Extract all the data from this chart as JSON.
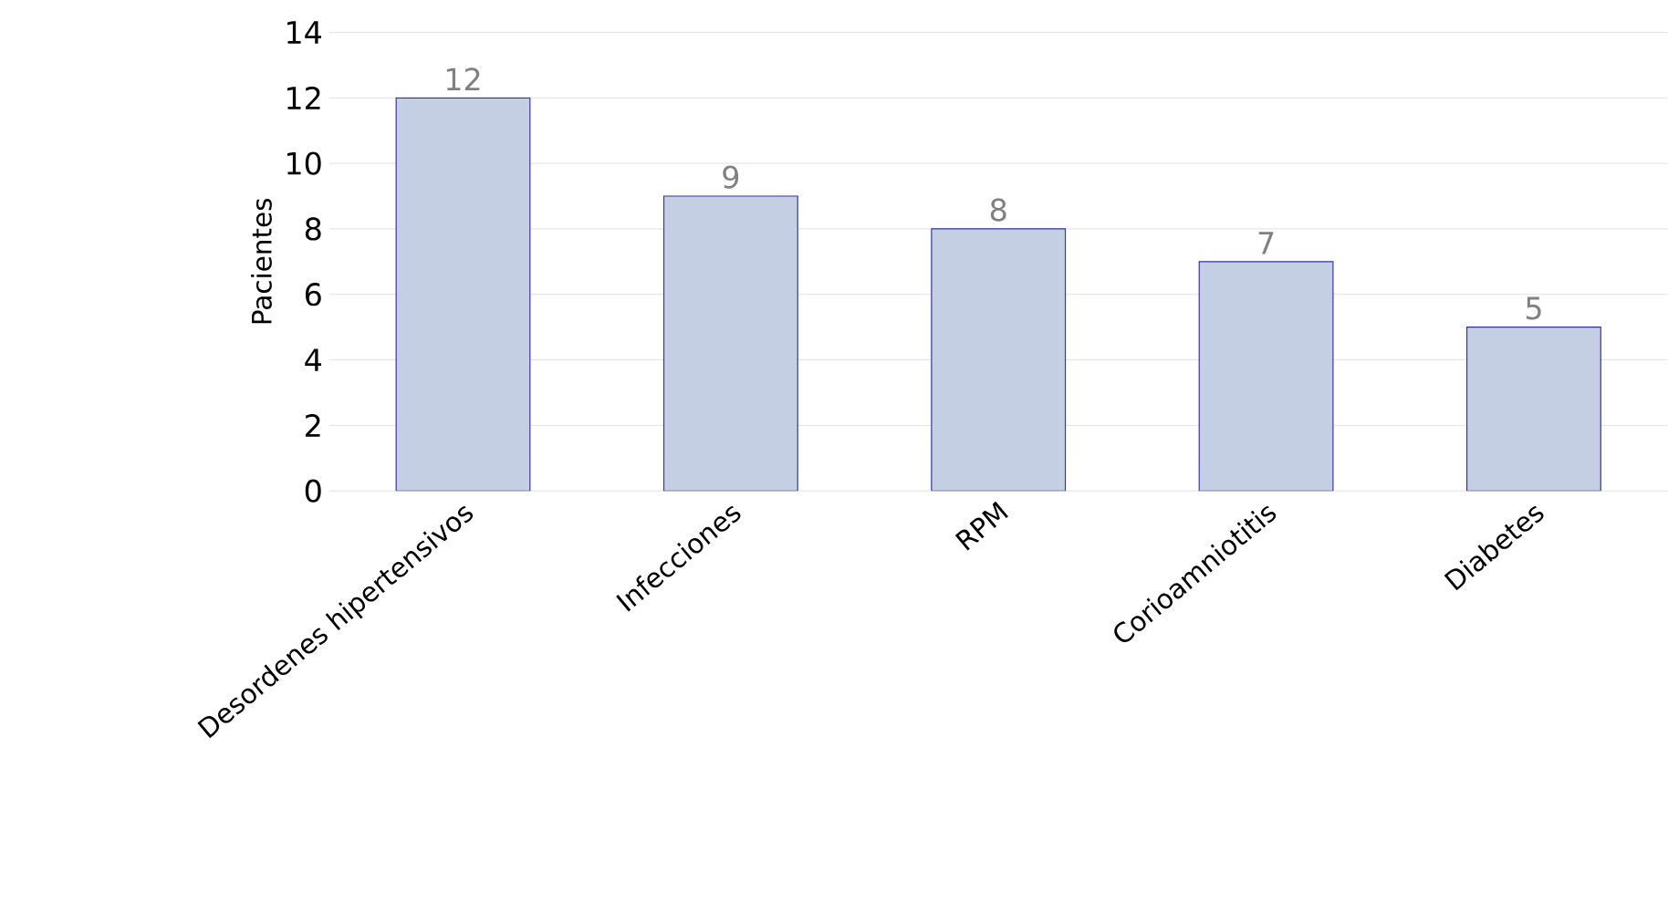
{
  "chart_data": {
    "type": "bar",
    "ylabel": "Pacientes",
    "categories": [
      "Desordenes hipertensivos",
      "Infecciones",
      "RPM",
      "Corioamniotitis",
      "Diabetes"
    ],
    "values": [
      12,
      9,
      8,
      7,
      5
    ],
    "color": "#c5cfe3",
    "ylim": [
      0,
      14
    ],
    "yticks": [
      0,
      2,
      4,
      6,
      8,
      10,
      12,
      14
    ],
    "grid": "y",
    "data_labels": true
  }
}
